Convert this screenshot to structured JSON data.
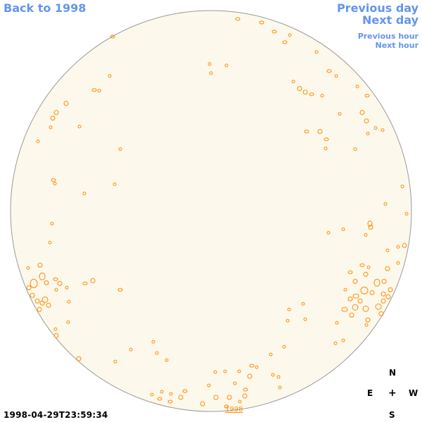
{
  "nav": {
    "back": "Back to 1998",
    "previous_day": "Previous day",
    "next_day": "Next day",
    "previous_hour": "Previous hour",
    "next_hour": "Next hour"
  },
  "timestamp": "1998-04-29T23:59:34",
  "year_link": "1998",
  "compass": {
    "north": "N",
    "east": "E",
    "center": "+",
    "west": "W",
    "south": "S"
  },
  "colors": {
    "disk_fill": "#fdf8ec",
    "disk_stroke": "#9a9a9a",
    "contour": "#ff8c00",
    "nav_link": "#6495ed"
  }
}
